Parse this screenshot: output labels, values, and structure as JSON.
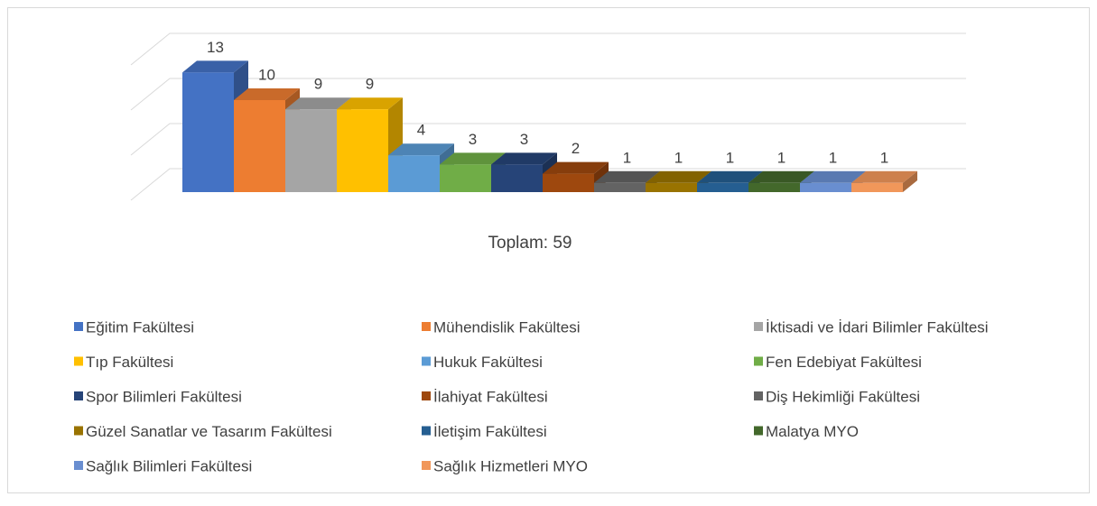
{
  "chart_data": {
    "type": "bar3d",
    "annotation": "Toplam: 59",
    "categories": [
      "Eğitim Fakültesi",
      "Mühendislik Fakültesi",
      "İktisadi ve İdari Bilimler Fakültesi",
      "Tıp Fakültesi",
      "Hukuk Fakültesi",
      "Fen Edebiyat Fakültesi",
      "Spor Bilimleri Fakültesi",
      "İlahiyat Fakültesi",
      "Diş Hekimliği Fakültesi",
      "Güzel Sanatlar ve Tasarım Fakültesi",
      "İletişim Fakültesi",
      "Malatya MYO",
      "Sağlık Bilimleri Fakültesi",
      "Sağlık Hizmetleri MYO"
    ],
    "values": [
      13,
      10,
      9,
      9,
      4,
      3,
      3,
      2,
      1,
      1,
      1,
      1,
      1,
      1
    ],
    "colors": [
      "#4472c4",
      "#ed7d31",
      "#a5a5a5",
      "#ffc000",
      "#5b9bd5",
      "#70ad47",
      "#264478",
      "#9e480e",
      "#636363",
      "#997300",
      "#255e91",
      "#43682b",
      "#698ed0",
      "#f1975a"
    ],
    "ylim": [
      0,
      15
    ],
    "yticks": [
      0,
      5,
      10,
      15
    ],
    "grid": true,
    "legend": "bottom"
  }
}
